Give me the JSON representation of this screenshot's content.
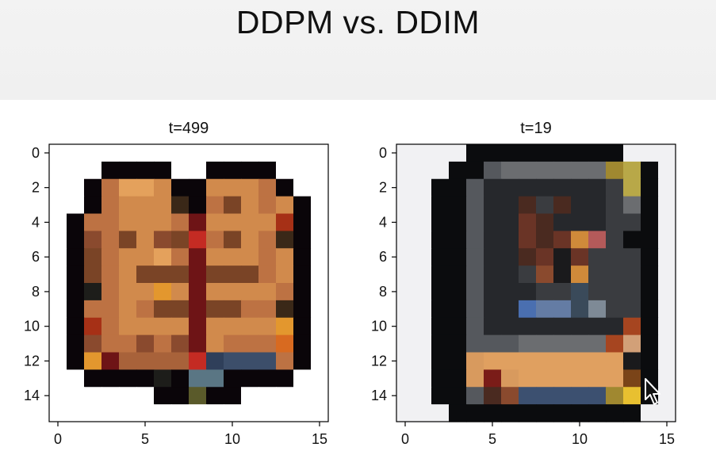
{
  "title": "DDPM vs. DDIM",
  "chart_data": [
    {
      "type": "heatmap",
      "title": "t=499",
      "xticks": [
        "0",
        "5",
        "10",
        "15"
      ],
      "yticks": [
        "0",
        "2",
        "4",
        "6",
        "8",
        "10",
        "12",
        "14"
      ],
      "xlim": [
        -0.5,
        15.5
      ],
      "ylim": [
        15.5,
        -0.5
      ],
      "palette": {
        "w": "#ffffff",
        "k": "#0a0509",
        "o": "#d18a4c",
        "p": "#e4a15c",
        "d": "#7a4426",
        "m": "#a8623a",
        "r": "#6e1416",
        "R": "#c42b23",
        "b": "#2f3f5a",
        "B": "#3c4e6a",
        "t": "#5a7684",
        "g": "#5a5a2a",
        "n": "#3a2818",
        "x": "#a63016",
        "y": "#e3972e",
        "z": "#4a2c4a",
        "q": "#bd7243",
        "e": "#8a4a2e",
        "h": "#d86a20",
        "s": "#1d1d1a"
      },
      "grid": [
        "wwwwwwwwwwwwwwww",
        "wwwkkkkwwkkkkwww",
        "wwkqppokkoooqkww",
        "wwkqooonkqdoqokw",
        "wkqqoooqrooooxkw",
        "wkeqdoedRqdoqnkw",
        "wkdqoopqroooqokw",
        "wkdqodddrdddqokw",
        "wksqooyorooooqkw",
        "wkqqoqddrddqqnkw",
        "wkxqoooorooooykw",
        "wkeqqeqeroqqqhkw",
        "wkyrmmmmRbBBBqkw",
        "wwkkkkskttkkkkww",
        "wwwwwwkkgkkwwwww",
        "wwwwwwwwwwwwwwww"
      ]
    },
    {
      "type": "heatmap",
      "title": "t=19",
      "xticks": [
        "0",
        "5",
        "10",
        "15"
      ],
      "yticks": [
        "0",
        "2",
        "4",
        "6",
        "8",
        "10",
        "12",
        "14"
      ],
      "xlim": [
        -0.5,
        15.5
      ],
      "ylim": [
        15.5,
        -0.5
      ],
      "palette": {
        "w": "#f1f1f3",
        "k": "#0b0c0e",
        "G": "#55585d",
        "L": "#6b6d70",
        "a": "#3a3c40",
        "A": "#26282c",
        "n": "#4a2a20",
        "d": "#6a3426",
        "u": "#cf8a3a",
        "v": "#b45a5a",
        "l": "#4a6fb0",
        "c": "#647ca4",
        "j": "#3a4a5a",
        "f": "#7e8a96",
        "x": "#a64520",
        "y": "#d2a078",
        "o": "#d89a5e",
        "O": "#e0a060",
        "r": "#7a1c18",
        "b": "#3c5070",
        "Y": "#e8c030",
        "K": "#a08830",
        "M": "#b8a848",
        "S": "#2a2a2c",
        "N": "#7a4418",
        "s": "#1a1a1c",
        "m": "#8a4a2e"
      },
      "grid": [
        "wwwwkkkkkkkkkwww",
        "wwwkkGLLLLLLKMkw",
        "wwkkGAAAAAAAaMkw",
        "wwkkGAAnanAAaLkw",
        "wwkkGAAdnAAAaakw",
        "wwkkGAAdnduvakkw",
        "wwkkGAAndsdaaakw",
        "wwkkGAAamsuaaakw",
        "wwkkGAAAaajaaakw",
        "wwkkGAAlccjfaakw",
        "wwkkGAAAAAAAAxkw",
        "wwkkGGGLLLLLxykw",
        "wwkkoOOOOOOOOskw",
        "wwkkoroOOOOOONkw",
        "wwkkGnmbbbbbKYkw",
        "wwwkkkkkkkkkkkww"
      ]
    }
  ]
}
